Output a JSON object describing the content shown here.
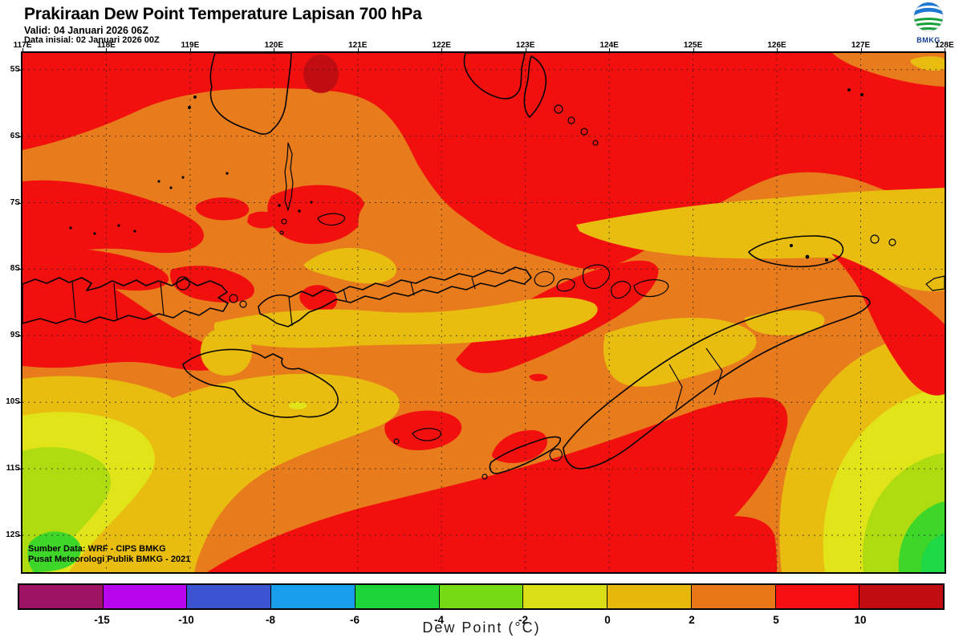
{
  "header": {
    "title": "Prakiraan Dew Point Temperature Lapisan 700 hPa",
    "valid": "Valid: 04 Januari 2026 06Z",
    "init": "Data inisial: 02 Januari 2026 00Z",
    "logo_text": "BMKG"
  },
  "axes": {
    "lon_labels": [
      "117E",
      "118E",
      "119E",
      "120E",
      "121E",
      "122E",
      "123E",
      "124E",
      "125E",
      "126E",
      "127E",
      "128E"
    ],
    "lat_labels": [
      "5S",
      "6S",
      "7S",
      "8S",
      "9S",
      "10S",
      "11S",
      "12S"
    ]
  },
  "map": {
    "attribution1": "Sumber Data: WRF - CIPS BMKG",
    "attribution2": "Pusat Meteorologi Publik BMKG - 2021",
    "palette": {
      "orange": "#E87B1C",
      "red": "#F2100E",
      "gold": "#E9BD10",
      "yellow": "#E2E41A",
      "ylg": "#AEDC10",
      "green": "#3FD62A",
      "bgreen": "#1FD846",
      "dred": "#C10D12"
    }
  },
  "colorbar": {
    "axis_label": "Dew Point (°C)",
    "tick_labels": [
      "-15",
      "-10",
      "-8",
      "-6",
      "-4",
      "-2",
      "0",
      "2",
      "5",
      "10"
    ],
    "segment_colors": [
      "#9E1263",
      "#B705EE",
      "#3A53D0",
      "#189EEB",
      "#1ED43B",
      "#76DB13",
      "#D9DE17",
      "#E7B70B",
      "#E87817",
      "#F50E12",
      "#C10C11"
    ]
  }
}
